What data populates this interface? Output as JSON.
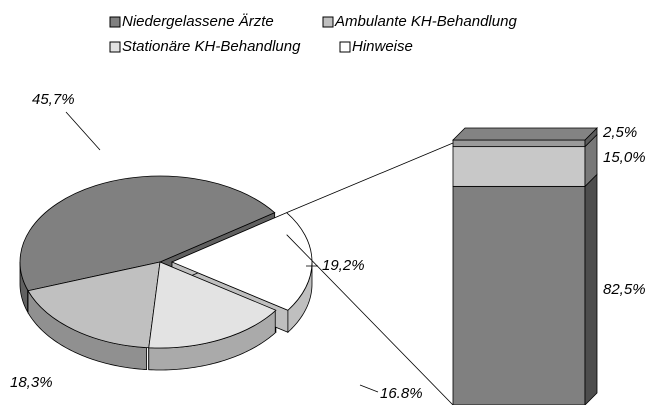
{
  "chart_data": [
    {
      "type": "pie",
      "categories": [
        "Niedergelassene Ärzte",
        "Ambulante KH-Behandlung",
        "Stationäre KH-Behandlung",
        "Hinweise"
      ],
      "values": [
        45.7,
        18.3,
        16.8,
        19.2
      ],
      "value_labels": [
        "45,7%",
        "18,3%",
        "16.8%",
        "19,2%"
      ],
      "colors": [
        "#808080",
        "#c0c0c0",
        "#e3e3e3",
        "#ffffff"
      ],
      "legend": "top"
    },
    {
      "type": "bar",
      "stacked": true,
      "values": [
        82.5,
        15.0,
        2.5
      ],
      "value_labels": [
        "82,5%",
        "15,0%",
        "2,5%"
      ],
      "colors": [
        "#808080",
        "#c8c8c8",
        "#9a9a9a"
      ]
    }
  ]
}
